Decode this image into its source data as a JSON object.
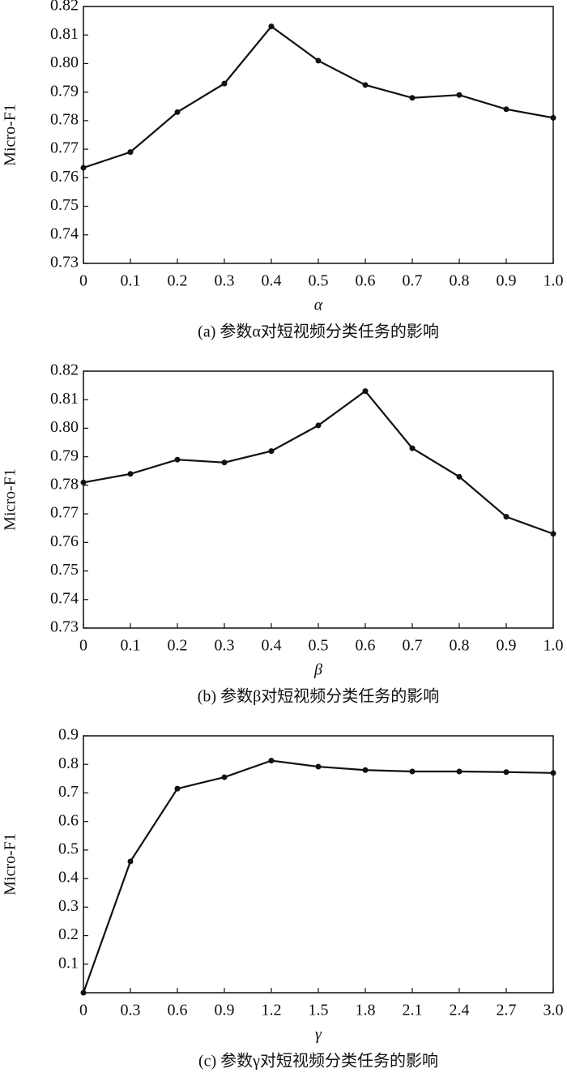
{
  "chart_data": [
    {
      "type": "line",
      "ylabel": "Micro-F1",
      "xlabel": "α",
      "caption": "(a) 参数α对短视频分类任务的影响",
      "x": [
        0,
        0.1,
        0.2,
        0.3,
        0.4,
        0.5,
        0.6,
        0.7,
        0.8,
        0.9,
        1.0
      ],
      "values": [
        0.7635,
        0.769,
        0.783,
        0.793,
        0.813,
        0.801,
        0.7925,
        0.788,
        0.789,
        0.784,
        0.781
      ],
      "color": "#111111",
      "xlim": [
        0,
        1
      ],
      "xticks": [
        0,
        0.1,
        0.2,
        0.3,
        0.4,
        0.5,
        0.6,
        0.7,
        0.8,
        0.9,
        {
          "value": 1,
          "label": "1.0"
        }
      ],
      "ylim": [
        0.73,
        0.82
      ],
      "yticks": [
        0.73,
        0.74,
        0.75,
        0.76,
        0.77,
        0.78,
        0.79,
        {
          "value": 0.8,
          "label": "0.80"
        },
        0.81,
        0.82
      ]
    },
    {
      "type": "line",
      "ylabel": "Micro-F1",
      "xlabel": "β",
      "caption": "(b) 参数β对短视频分类任务的影响",
      "x": [
        0,
        0.1,
        0.2,
        0.3,
        0.4,
        0.5,
        0.6,
        0.7,
        0.8,
        0.9,
        1.0
      ],
      "values": [
        0.781,
        0.784,
        0.789,
        0.788,
        0.792,
        0.801,
        0.813,
        0.793,
        0.783,
        0.769,
        0.763
      ],
      "color": "#111111",
      "xlim": [
        0,
        1
      ],
      "xticks": [
        0,
        0.1,
        0.2,
        0.3,
        0.4,
        0.5,
        0.6,
        0.7,
        0.8,
        0.9,
        {
          "value": 1,
          "label": "1.0"
        }
      ],
      "ylim": [
        0.73,
        0.82
      ],
      "yticks": [
        0.73,
        0.74,
        0.75,
        0.76,
        0.77,
        0.78,
        0.79,
        {
          "value": 0.8,
          "label": "0.80"
        },
        0.81,
        0.82
      ]
    },
    {
      "type": "line",
      "ylabel": "Micro-F1",
      "xlabel": "γ",
      "caption": "(c) 参数γ对短视频分类任务的影响",
      "x": [
        0,
        0.3,
        0.6,
        0.9,
        1.2,
        1.5,
        1.8,
        2.1,
        2.4,
        2.7,
        3.0
      ],
      "values": [
        0.0,
        0.46,
        0.715,
        0.755,
        0.813,
        0.792,
        0.78,
        0.775,
        0.775,
        0.773,
        0.77
      ],
      "color": "#111111",
      "xlim": [
        0,
        3
      ],
      "xticks": [
        0,
        0.3,
        0.6,
        0.9,
        1.2,
        1.5,
        1.8,
        2.1,
        2.4,
        2.7,
        {
          "value": 3,
          "label": "3.0"
        }
      ],
      "ylim": [
        0,
        0.9
      ],
      "yticks": [
        0.1,
        0.2,
        0.3,
        0.4,
        0.5,
        0.6,
        0.7,
        0.8,
        0.9
      ]
    }
  ]
}
